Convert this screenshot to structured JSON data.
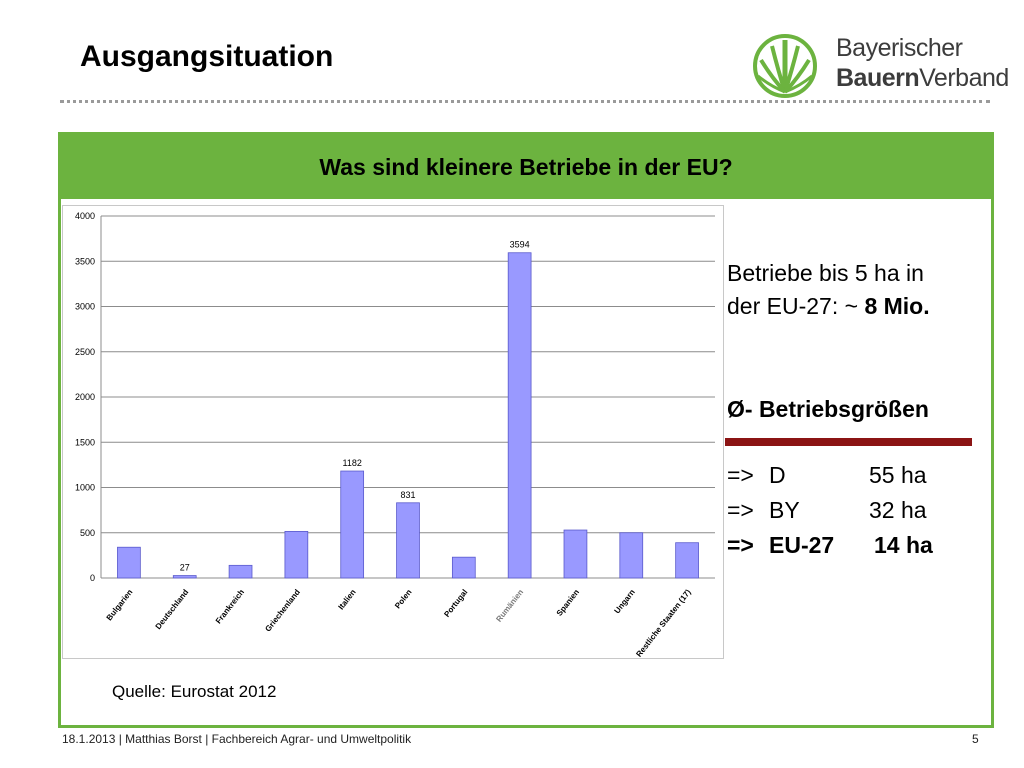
{
  "slide": {
    "title": "Ausgangsituation",
    "header": "Was sind kleinere Betriebe in der EU?",
    "logo": {
      "line1": "Bayerischer",
      "line2_bold": "Bauern",
      "line2_regular": "Verband"
    },
    "side": {
      "text_line1": "Betriebe bis 5 ha in",
      "text_line2_prefix": "der EU-27: ~ ",
      "text_line2_bold": "8 Mio.",
      "avg_heading": "Ø- Betriebsgrößen",
      "rows": [
        {
          "arrow": "=>",
          "region": "D",
          "value": "55 ha"
        },
        {
          "arrow": "=>",
          "region": "BY",
          "value": "32 ha"
        },
        {
          "arrow": "=>",
          "region": "EU-27",
          "value": "14 ha"
        }
      ]
    },
    "source": "Quelle: Eurostat 2012",
    "footer": "18.1.2013 | Matthias Borst | Fachbereich Agrar- und Umweltpolitik",
    "page_number": "5"
  },
  "colors": {
    "accent_green": "#6cb33f",
    "bar_fill": "#9999ff",
    "bar_stroke": "#5a5acc",
    "divider_red": "#8b1414"
  },
  "icons": {
    "logo": "wheat-sheaf-icon"
  },
  "chart_data": {
    "type": "bar",
    "categories": [
      "Bulgarien",
      "Deutschland",
      "Frankreich",
      "Griechenland",
      "Italien",
      "Polen",
      "Portugal",
      "Rumänien",
      "Spanien",
      "Ungarn",
      "Restliche Staaten (17)"
    ],
    "values": [
      340,
      27,
      140,
      515,
      1182,
      831,
      230,
      3594,
      530,
      500,
      390
    ],
    "data_labels": {
      "1": "27",
      "4": "1182",
      "5": "831",
      "7": "3594"
    },
    "ylim": [
      0,
      4000
    ],
    "yticks": [
      0,
      500,
      1000,
      1500,
      2000,
      2500,
      3000,
      3500,
      4000
    ],
    "grid": true,
    "legend": "none"
  }
}
